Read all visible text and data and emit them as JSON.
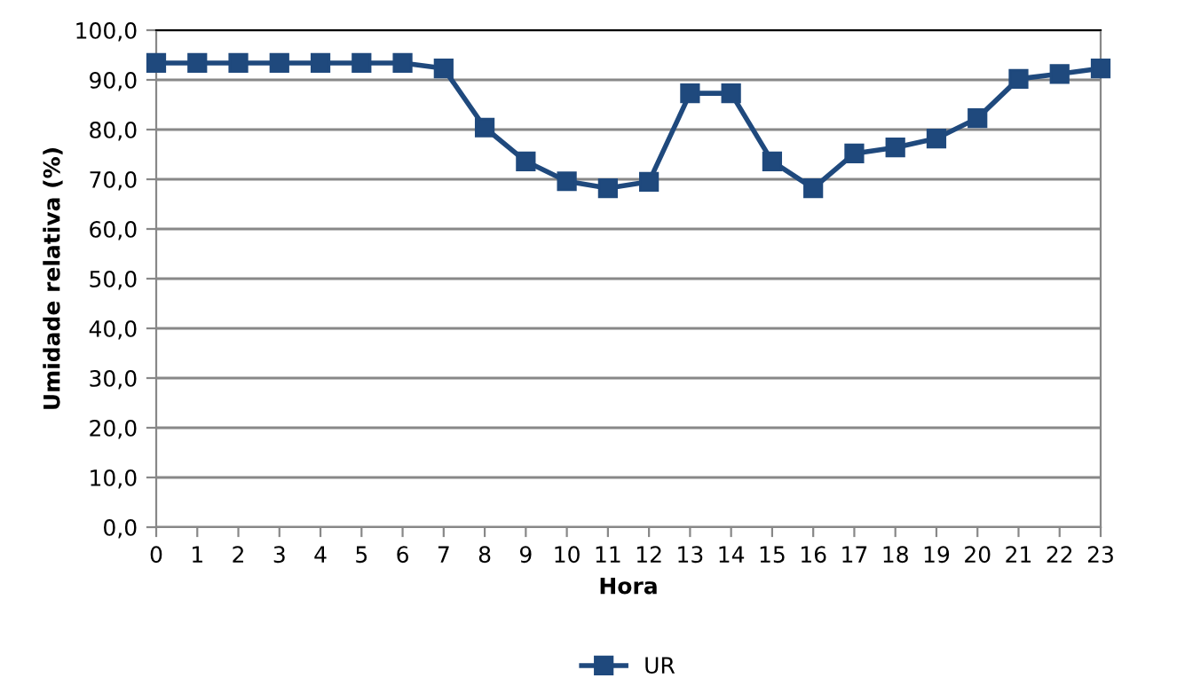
{
  "chart_data": {
    "type": "line",
    "xlabel": "Hora",
    "ylabel": "Umidade relativa (%)",
    "x": [
      0,
      1,
      2,
      3,
      4,
      5,
      6,
      7,
      8,
      9,
      10,
      11,
      12,
      13,
      14,
      15,
      16,
      17,
      18,
      19,
      20,
      21,
      22,
      23
    ],
    "series": [
      {
        "name": "UR",
        "color": "#1f497d",
        "values": [
          93.4,
          93.4,
          93.4,
          93.4,
          93.4,
          93.4,
          93.4,
          92.3,
          80.4,
          73.6,
          69.6,
          68.2,
          69.5,
          87.3,
          87.3,
          73.6,
          68.2,
          75.2,
          76.4,
          78.2,
          82.3,
          90.2,
          91.2,
          92.3
        ]
      }
    ],
    "xlim": [
      0,
      23
    ],
    "xticks": [
      0,
      1,
      2,
      3,
      4,
      5,
      6,
      7,
      8,
      9,
      10,
      11,
      12,
      13,
      14,
      15,
      16,
      17,
      18,
      19,
      20,
      21,
      22,
      23
    ],
    "ylim": [
      0,
      100
    ],
    "yticks": [
      {
        "value": 0,
        "label": "0,0"
      },
      {
        "value": 10,
        "label": "10,0"
      },
      {
        "value": 20,
        "label": "20,0"
      },
      {
        "value": 30,
        "label": "30,0"
      },
      {
        "value": 40,
        "label": "40,0"
      },
      {
        "value": 50,
        "label": "50,0"
      },
      {
        "value": 60,
        "label": "60,0"
      },
      {
        "value": 70,
        "label": "70,0"
      },
      {
        "value": 80,
        "label": "80,0"
      },
      {
        "value": 90,
        "label": "90,0"
      },
      {
        "value": 100,
        "label": "100,0"
      }
    ],
    "grid": "y",
    "legend": "bottom",
    "marker": "square",
    "line_style": "solid"
  }
}
